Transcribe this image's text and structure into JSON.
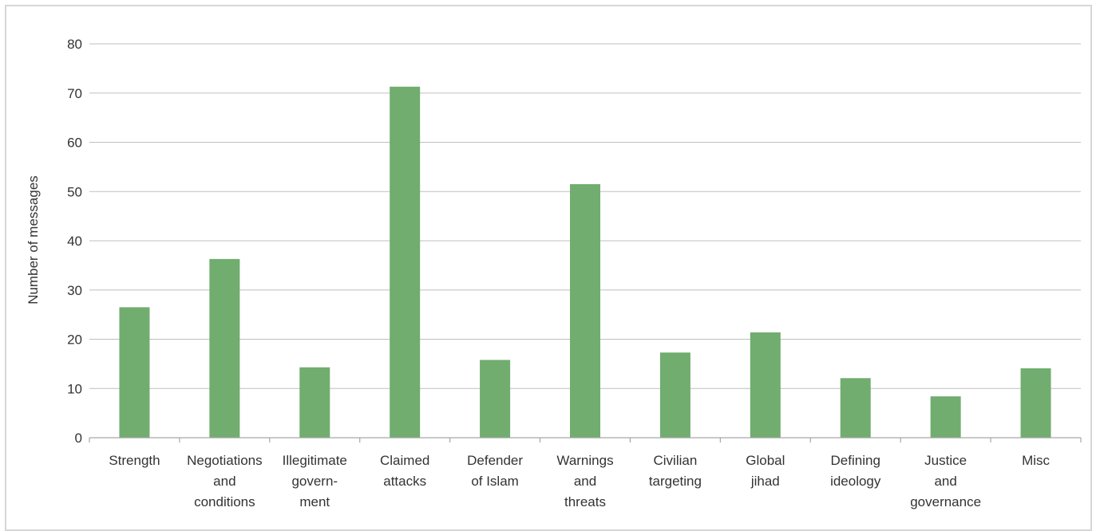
{
  "chart_data": {
    "type": "bar",
    "title": "",
    "xlabel": "",
    "ylabel": "Number of messages",
    "ylim": [
      0,
      80
    ],
    "yticks": [
      0,
      10,
      20,
      30,
      40,
      50,
      60,
      70,
      80
    ],
    "grid": true,
    "legend": "none",
    "bar_color": "#70ad6f",
    "categories": [
      [
        "Strength"
      ],
      [
        "Negotiations",
        "and",
        "conditions"
      ],
      [
        "Illegitimate",
        "govern-",
        "ment"
      ],
      [
        "Claimed",
        "attacks"
      ],
      [
        "Defender",
        "of Islam"
      ],
      [
        "Warnings",
        "and",
        "threats"
      ],
      [
        "Civilian",
        "targeting"
      ],
      [
        "Global",
        "jihad"
      ],
      [
        "Defining",
        "ideology"
      ],
      [
        "Justice",
        "and",
        "governance"
      ],
      [
        "Misc"
      ]
    ],
    "values": [
      26.5,
      36.3,
      14.3,
      71.3,
      15.8,
      51.5,
      17.3,
      21.4,
      12.1,
      8.4,
      14.1
    ]
  }
}
